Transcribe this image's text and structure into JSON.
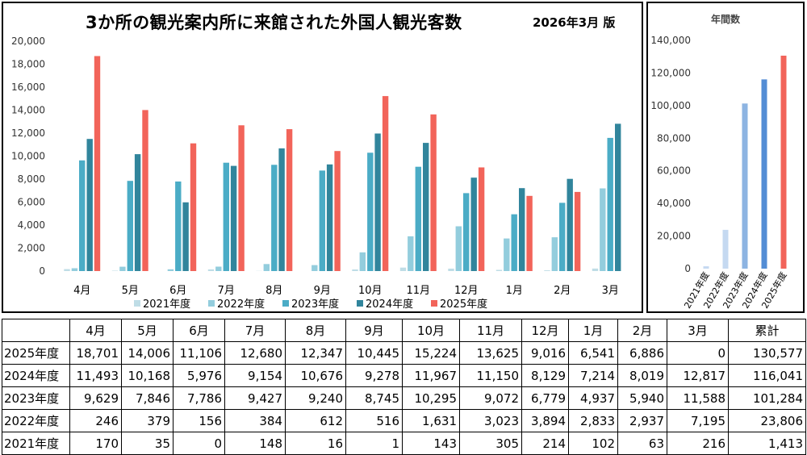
{
  "title": "3か所の観光案内所に来館された外国人観光客数",
  "edition": "2026年3月 版",
  "colors": {
    "2021年度": "#bfdde6",
    "2022年度": "#93cddd",
    "2023年度": "#4bacc6",
    "2024年度": "#31859c",
    "2025年度": "#f2645a"
  },
  "annual_colors": [
    "#c5d9f1",
    "#c5d9f1",
    "#8db4e2",
    "#538dd5",
    "#f2645a"
  ],
  "chart_data": [
    {
      "type": "bar",
      "title": "3か所の観光案内所に来館された外国人観光客数",
      "categories": [
        "4月",
        "5月",
        "6月",
        "7月",
        "8月",
        "9月",
        "10月",
        "11月",
        "12月",
        "1月",
        "2月",
        "3月"
      ],
      "ylim": [
        0,
        20000
      ],
      "yticks": [
        "0",
        "2,000",
        "4,000",
        "6,000",
        "8,000",
        "10,000",
        "12,000",
        "14,000",
        "16,000",
        "18,000",
        "20,000"
      ],
      "legend_position": "bottom",
      "series": [
        {
          "name": "2021年度",
          "values": [
            170,
            35,
            0,
            148,
            16,
            1,
            143,
            305,
            214,
            102,
            63,
            216
          ]
        },
        {
          "name": "2022年度",
          "values": [
            246,
            379,
            156,
            384,
            612,
            516,
            1631,
            3023,
            3894,
            2833,
            2937,
            7195
          ]
        },
        {
          "name": "2023年度",
          "values": [
            9629,
            7846,
            7786,
            9427,
            9240,
            8745,
            10295,
            9072,
            6779,
            4937,
            5940,
            11588
          ]
        },
        {
          "name": "2024年度",
          "values": [
            11493,
            10168,
            5976,
            9154,
            10676,
            9278,
            11967,
            11150,
            8129,
            7214,
            8019,
            12817
          ]
        },
        {
          "name": "2025年度",
          "values": [
            18701,
            14006,
            11106,
            12680,
            12347,
            10445,
            15224,
            13625,
            9016,
            6541,
            6886,
            0
          ]
        }
      ]
    },
    {
      "type": "bar",
      "title": "年間数",
      "categories": [
        "2021年度",
        "2022年度",
        "2023年度",
        "2024年度",
        "2025年度"
      ],
      "values": [
        1413,
        23806,
        101284,
        116041,
        130577
      ],
      "ylim": [
        0,
        140000
      ],
      "yticks": [
        "0",
        "20,000",
        "40,000",
        "60,000",
        "80,000",
        "100,000",
        "120,000",
        "140,000"
      ]
    }
  ],
  "table": {
    "headers": [
      "",
      "4月",
      "5月",
      "6月",
      "7月",
      "8月",
      "9月",
      "10月",
      "11月",
      "12月",
      "1月",
      "2月",
      "3月",
      "累計"
    ],
    "rows": [
      [
        "2025年度",
        "18,701",
        "14,006",
        "11,106",
        "12,680",
        "12,347",
        "10,445",
        "15,224",
        "13,625",
        "9,016",
        "6,541",
        "6,886",
        "0",
        "130,577"
      ],
      [
        "2024年度",
        "11,493",
        "10,168",
        "5,976",
        "9,154",
        "10,676",
        "9,278",
        "11,967",
        "11,150",
        "8,129",
        "7,214",
        "8,019",
        "12,817",
        "116,041"
      ],
      [
        "2023年度",
        "9,629",
        "7,846",
        "7,786",
        "9,427",
        "9,240",
        "8,745",
        "10,295",
        "9,072",
        "6,779",
        "4,937",
        "5,940",
        "11,588",
        "101,284"
      ],
      [
        "2022年度",
        "246",
        "379",
        "156",
        "384",
        "612",
        "516",
        "1,631",
        "3,023",
        "3,894",
        "2,833",
        "2,937",
        "7,195",
        "23,806"
      ],
      [
        "2021年度",
        "170",
        "35",
        "0",
        "148",
        "16",
        "1",
        "143",
        "305",
        "214",
        "102",
        "63",
        "216",
        "1,413"
      ]
    ]
  }
}
